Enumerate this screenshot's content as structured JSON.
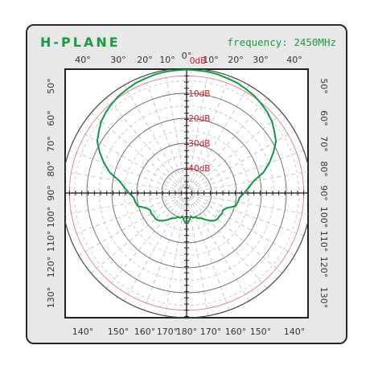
{
  "chart_data": {
    "type": "polar-radiation-pattern",
    "title": "H-PLANE",
    "subtitle": "frequency: 2450MHz",
    "colors": {
      "pattern": "#119944",
      "title": "#1a9a40",
      "db_labels": "#cc2222",
      "inner_circle": "#e07a90",
      "frame": "#222222",
      "panel": "#ffffff"
    },
    "radial": {
      "unit": "dB",
      "range": [
        -50,
        0
      ],
      "ring_labels": [
        "0dB",
        "-10dB",
        "-20dB",
        "-30dB",
        "-40dB"
      ],
      "ring_values": [
        0,
        -10,
        -20,
        -30,
        -40
      ],
      "highlight_ring": -3
    },
    "angular": {
      "top_labels": [
        "40°",
        "30°",
        "20°",
        "10°",
        "0°",
        "10°",
        "20°",
        "30°",
        "40°"
      ],
      "bottom_labels": [
        "140°",
        "150°",
        "160°",
        "170°",
        "180°",
        "170°",
        "160°",
        "150°",
        "140°"
      ],
      "left_labels": [
        "50°",
        "60°",
        "70°",
        "80°",
        "90°",
        "100°",
        "110°",
        "120°",
        "130°"
      ],
      "right_labels": [
        "50°",
        "60°",
        "70°",
        "80°",
        "90°",
        "100°",
        "110°",
        "120°",
        "130°"
      ],
      "spoke_step_deg": 10,
      "grid": true
    },
    "series": [
      {
        "angle_deg": [
          0,
          5,
          10,
          15,
          20,
          25,
          30,
          35,
          40,
          45,
          50,
          55,
          60,
          65,
          70,
          75,
          80,
          85,
          90,
          95,
          100,
          105,
          110,
          115,
          120,
          125,
          130,
          135,
          140,
          145,
          150,
          155,
          160,
          165,
          170,
          175,
          180
        ],
        "gain_db": [
          -0.5,
          -0.6,
          -0.6,
          -0.8,
          -1.2,
          -1.4,
          -2.0,
          -2.5,
          -3.3,
          -4.2,
          -5.3,
          -7.0,
          -8.6,
          -11.6,
          -14.7,
          -18.1,
          -22.7,
          -25.0,
          -26.9,
          -28.7,
          -29.1,
          -29.7,
          -32.6,
          -33.9,
          -33.6,
          -33.9,
          -33.8,
          -34.3,
          -35.5,
          -37.0,
          -38.4,
          -38.8,
          -39.8,
          -39.7,
          -40.5,
          -38.7,
          -38.3
        ]
      }
    ]
  }
}
